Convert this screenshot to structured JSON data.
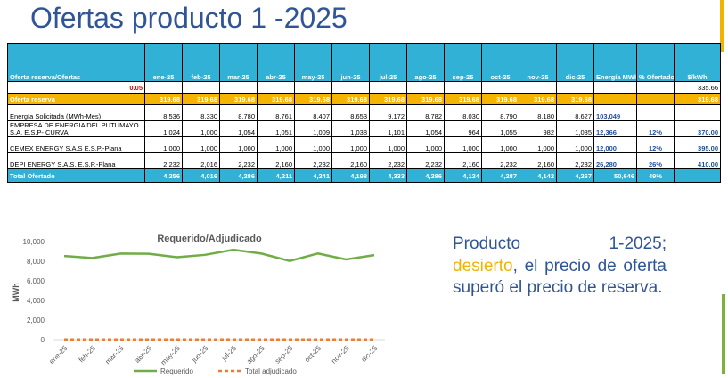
{
  "title": "Ofertas producto 1 -2025",
  "table": {
    "header": {
      "label": "Oferta reserva/Ofertas",
      "months": [
        "ene-25",
        "feb-25",
        "mar-25",
        "abr-25",
        "may-25",
        "jun-25",
        "jul-25",
        "ago-25",
        "sep-25",
        "oct-25",
        "nov-25",
        "dic-25"
      ],
      "energia": "Energía MWh-Año",
      "pct": "% Ofertado",
      "price": "$/kWh"
    },
    "factor_row": {
      "value": "0.05",
      "price": "335.66"
    },
    "reserve_row": {
      "label": "Oferta reserva",
      "values": [
        "319.68",
        "319.68",
        "319.68",
        "319.68",
        "319.68",
        "319.68",
        "319.68",
        "319.68",
        "319.68",
        "319.68",
        "319.68",
        "319.68"
      ],
      "price": "319.68"
    },
    "requested_row": {
      "label": "Energía Solicitada  (MWh-Mes)",
      "values": [
        "8,536",
        "8,330",
        "8,780",
        "8,761",
        "8,407",
        "8,653",
        "9,172",
        "8,782",
        "8,030",
        "8,790",
        "8,180",
        "8,627"
      ],
      "total": "103,049"
    },
    "offers": [
      {
        "name": "EMPRESA DE ENERGIA DEL PUTUMAYO S.A. E.S.P- CURVA",
        "values": [
          "1,024",
          "1,000",
          "1,054",
          "1,051",
          "1,009",
          "1,038",
          "1,101",
          "1,054",
          "964",
          "1,055",
          "982",
          "1,035"
        ],
        "total": "12,366",
        "pct": "12%",
        "price": "370.00"
      },
      {
        "name": "CEMEX ENERGY S.A.S E.S.P.-Plana",
        "values": [
          "1,000",
          "1,000",
          "1,000",
          "1,000",
          "1,000",
          "1,000",
          "1,000",
          "1,000",
          "1,000",
          "1,000",
          "1,000",
          "1,000"
        ],
        "total": "12,000",
        "pct": "12%",
        "price": "395.00"
      },
      {
        "name": "DEPI ENERGY S.A.S. E.S.P.-Plana",
        "values": [
          "2,232",
          "2,016",
          "2,232",
          "2,160",
          "2,232",
          "2,160",
          "2,232",
          "2,232",
          "2,160",
          "2,232",
          "2,160",
          "2,232"
        ],
        "total": "26,280",
        "pct": "26%",
        "price": "410.00"
      }
    ],
    "total_row": {
      "label": "Total Ofertado",
      "values": [
        "4,256",
        "4,016",
        "4,286",
        "4,211",
        "4,241",
        "4,198",
        "4,333",
        "4,286",
        "4,124",
        "4,287",
        "4,142",
        "4,267"
      ],
      "total": "50,646",
      "pct": "49%"
    }
  },
  "chart_data": {
    "type": "line",
    "title": "Requerido/Adjudicado",
    "ylabel": "MWh",
    "xlabel": "",
    "ylim": [
      0,
      10000
    ],
    "yticks": [
      "0",
      "2,000",
      "4,000",
      "6,000",
      "8,000",
      "10,000"
    ],
    "categories": [
      "ene-25",
      "feb-25",
      "mar-25",
      "abr-25",
      "may-25",
      "jun-25",
      "jul-25",
      "ago-25",
      "sep-25",
      "oct-25",
      "nov-25",
      "dic-25"
    ],
    "series": [
      {
        "name": "Requerido",
        "color": "#70ad47",
        "values": [
          8536,
          8330,
          8780,
          8761,
          8407,
          8653,
          9172,
          8782,
          8030,
          8790,
          8180,
          8627
        ]
      },
      {
        "name": "Total adjudicado",
        "color": "#ed7d31",
        "values": [
          0,
          0,
          0,
          0,
          0,
          0,
          0,
          0,
          0,
          0,
          0,
          0
        ]
      }
    ],
    "legend": "bottom",
    "grid": false
  },
  "callout": {
    "line1_a": "Producto",
    "line1_b": "1-2025;",
    "highlight": "desierto",
    "rest": ", el precio de oferta superó el precio de reserva."
  },
  "colors": {
    "title": "#2f5597",
    "header_bg": "#31b1d6",
    "reserve_bg": "#f5b400",
    "highlight": "#f0b400"
  }
}
